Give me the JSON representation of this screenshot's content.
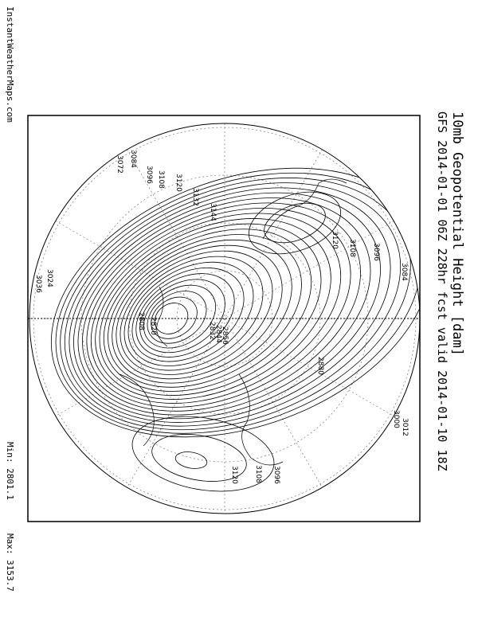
{
  "header": {
    "title": "10mb Geopotential Height [dam]",
    "subtitle": "GFS 2014-01-01 06Z 228hr fcst valid 2014-01-10 18Z",
    "source": "InstantWeatherMaps.com"
  },
  "footer": {
    "min": "Min: 2801.1",
    "max": "Max: 3153.7"
  },
  "contour_labels": [
    "3072",
    "3084",
    "3096",
    "3108",
    "3120",
    "3132",
    "3144",
    "3120",
    "3108",
    "3096",
    "3084",
    "3036",
    "3024",
    "2856",
    "2844",
    "2832",
    "2820",
    "2808",
    "2880",
    "3000",
    "3012",
    "3120",
    "3108",
    "3096"
  ]
}
